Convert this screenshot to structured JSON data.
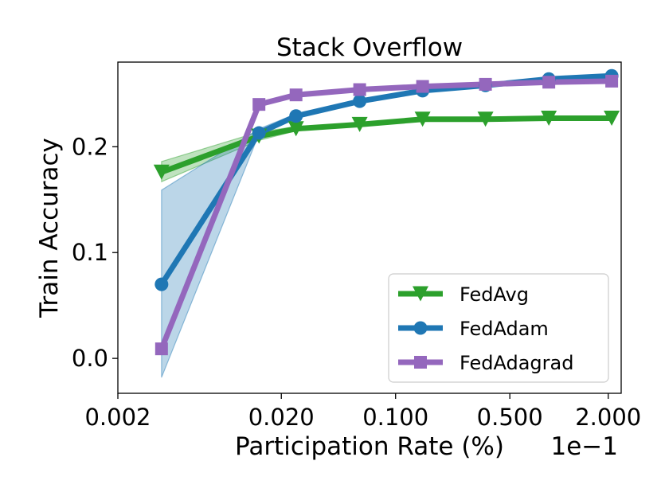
{
  "chart_data": {
    "type": "line",
    "title": "Stack Overflow",
    "xlabel": "Participation Rate (%)",
    "ylabel": "Train Accuracy",
    "x_scale": "log",
    "x_offset_label": "1e−1",
    "xlim": [
      0.002,
      2.4
    ],
    "ylim": [
      -0.033,
      0.28
    ],
    "x_ticks": [
      {
        "value": 0.002,
        "label": "0.002"
      },
      {
        "value": 0.02,
        "label": "0.020"
      },
      {
        "value": 0.1,
        "label": "0.100"
      },
      {
        "value": 0.5,
        "label": "0.500"
      },
      {
        "value": 2.0,
        "label": "2.000"
      }
    ],
    "y_ticks": [
      {
        "value": 0.0,
        "label": "0.0"
      },
      {
        "value": 0.1,
        "label": "0.1"
      },
      {
        "value": 0.2,
        "label": "0.2"
      }
    ],
    "grid": false,
    "legend_position": "bottom-right",
    "series": [
      {
        "name": "FedAvg",
        "color": "#2ca02c",
        "marker": "triangle-down",
        "x": [
          0.0037,
          0.0146,
          0.0246,
          0.0603,
          0.1463,
          0.3548,
          0.866,
          2.1
        ],
        "y": [
          0.176,
          0.21,
          0.217,
          0.221,
          0.226,
          0.226,
          0.227,
          0.227
        ],
        "band_low": [
          0.167,
          0.206,
          0.215,
          0.22,
          0.225,
          0.225,
          0.226,
          0.226
        ],
        "band_high": [
          0.186,
          0.214,
          0.219,
          0.222,
          0.227,
          0.227,
          0.228,
          0.228
        ]
      },
      {
        "name": "FedAdam",
        "color": "#1f77b4",
        "marker": "circle",
        "x": [
          0.0037,
          0.0146,
          0.0246,
          0.0603,
          0.1463,
          0.3548,
          0.866,
          2.1
        ],
        "y": [
          0.07,
          0.213,
          0.229,
          0.243,
          0.253,
          0.258,
          0.264,
          0.267
        ],
        "band_low": [
          -0.018,
          0.212,
          0.227,
          0.242,
          0.252,
          0.257,
          0.263,
          0.266
        ],
        "band_high": [
          0.159,
          0.217,
          0.231,
          0.244,
          0.254,
          0.259,
          0.265,
          0.268
        ]
      },
      {
        "name": "FedAdagrad",
        "color": "#9467bd",
        "marker": "square",
        "x": [
          0.0037,
          0.0146,
          0.0246,
          0.0603,
          0.1463,
          0.3548,
          0.866,
          2.1
        ],
        "y": [
          0.009,
          0.24,
          0.249,
          0.254,
          0.257,
          0.259,
          0.261,
          0.262
        ],
        "band_low": null,
        "band_high": null
      }
    ]
  }
}
